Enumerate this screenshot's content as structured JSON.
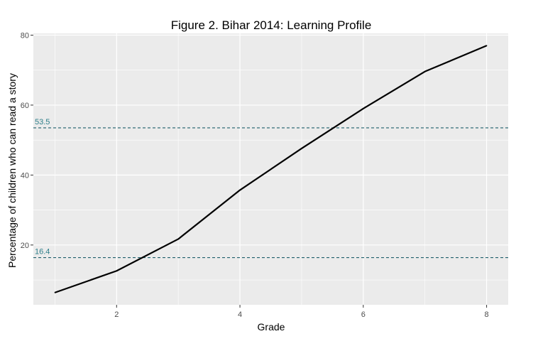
{
  "chart_data": {
    "type": "line",
    "title": "Figure 2. Bihar 2014: Learning Profile",
    "xlabel": "Grade",
    "ylabel": "Percentage of children who can read a story",
    "x": [
      1,
      2,
      3,
      4,
      5,
      6,
      7,
      8
    ],
    "values": [
      6.4,
      12.6,
      21.7,
      35.7,
      47.6,
      59.0,
      69.6,
      77.0
    ],
    "xlim": [
      0.65,
      8.35
    ],
    "ylim": [
      2.9,
      80.5
    ],
    "xticks": [
      2,
      4,
      6,
      8
    ],
    "xtick_labels": [
      "2",
      "4",
      "6",
      "8"
    ],
    "yticks": [
      20,
      40,
      60,
      80
    ],
    "ytick_labels": [
      "20",
      "40",
      "60",
      "80"
    ],
    "grid": true,
    "line_color": "#000000",
    "reference_lines": [
      {
        "value": 53.5,
        "label": "53.5",
        "style": "dashed",
        "color": "#1f5f6b"
      },
      {
        "value": 16.4,
        "label": "16.4",
        "style": "dashed",
        "color": "#1f5f6b"
      }
    ],
    "panel_background": "#ebebeb"
  }
}
